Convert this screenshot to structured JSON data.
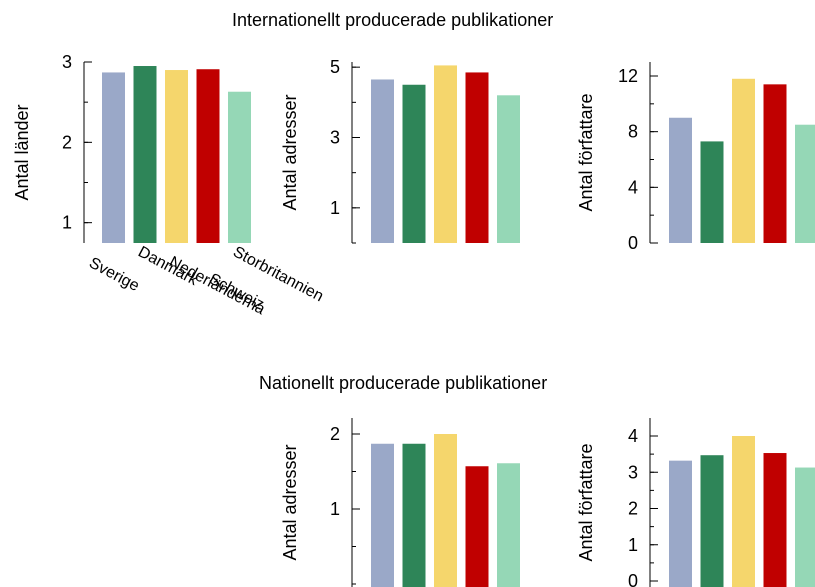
{
  "sections": {
    "international_title": "Internationellt producerade publikationer",
    "national_title": "Nationellt producerade publikationer"
  },
  "colors": [
    "#9aa8c8",
    "#2e8558",
    "#f5d66c",
    "#c00000",
    "#95d7b6"
  ],
  "chart_data": [
    {
      "id": "intl-countries",
      "group": "Internationellt producerade publikationer",
      "type": "bar",
      "categories": [
        "Sverige",
        "Danmark",
        "Nederländerna",
        "Schweiz",
        "Storbritannien"
      ],
      "values": [
        2.87,
        2.95,
        2.9,
        2.91,
        2.63
      ],
      "ylabel": "Antal länder",
      "ylim": [
        0,
        3
      ],
      "yticks": [
        1,
        2,
        3
      ],
      "show_category_labels": true
    },
    {
      "id": "intl-addresses",
      "group": "Internationellt producerade publikationer",
      "type": "bar",
      "categories": [
        "Sverige",
        "Danmark",
        "Nederländerna",
        "Schweiz",
        "Storbritannien"
      ],
      "values": [
        4.65,
        4.5,
        5.05,
        4.85,
        4.2
      ],
      "ylabel": "Antal adresser",
      "ylim": [
        0,
        6
      ],
      "yticks": [
        1,
        3,
        5
      ]
    },
    {
      "id": "intl-authors",
      "group": "Internationellt producerade publikationer",
      "type": "bar",
      "categories": [
        "Sverige",
        "Danmark",
        "Nederländerna",
        "Schweiz",
        "Storbritannien"
      ],
      "values": [
        9.0,
        7.3,
        11.8,
        11.4,
        8.5
      ],
      "ylabel": "Antal författare",
      "ylim": [
        0,
        12
      ],
      "yticks": [
        0,
        4,
        8,
        12
      ]
    },
    {
      "id": "nat-addresses",
      "group": "Nationellt producerade publikationer",
      "type": "bar",
      "categories": [
        "Sverige",
        "Danmark",
        "Nederländerna",
        "Schweiz",
        "Storbritannien"
      ],
      "values": [
        1.87,
        1.87,
        2.0,
        1.57,
        1.61
      ],
      "ylabel": "Antal adresser",
      "ylim": [
        0,
        2
      ],
      "yticks": [
        1,
        2
      ]
    },
    {
      "id": "nat-authors",
      "group": "Nationellt producerade publikationer",
      "type": "bar",
      "categories": [
        "Sverige",
        "Danmark",
        "Nederländerna",
        "Schweiz",
        "Storbritannien"
      ],
      "values": [
        3.32,
        3.47,
        4.0,
        3.53,
        3.13
      ],
      "ylabel": "Antal författare",
      "ylim": [
        0,
        4
      ],
      "yticks": [
        0,
        1,
        2,
        3,
        4
      ]
    }
  ]
}
